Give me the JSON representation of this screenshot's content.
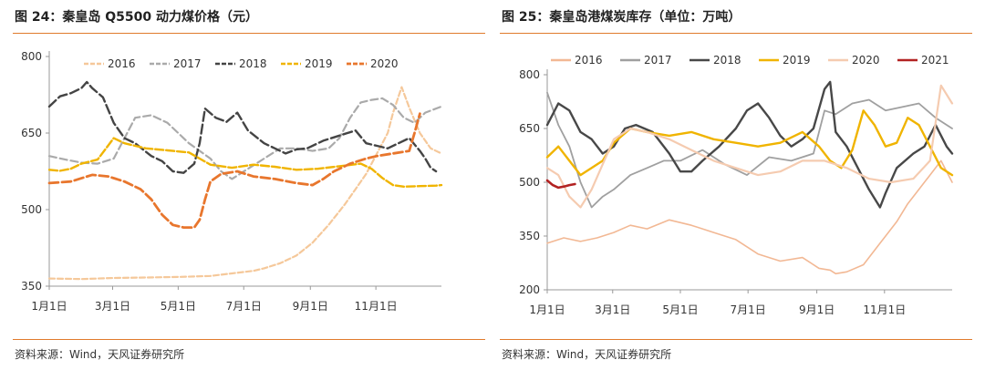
{
  "charts": [
    {
      "title": "图 24：秦皇岛 Q5500 动力煤价格（元）",
      "source": "资料来源：Wind，天风证券研究所"
    },
    {
      "title": "图 25：秦皇岛港煤炭库存（单位：万吨）",
      "source": "资料来源：Wind，天风证券研究所"
    }
  ],
  "chart_data": [
    {
      "type": "line",
      "title": "图 24：秦皇岛 Q5500 动力煤价格（元）",
      "xlabel": "",
      "ylabel": "",
      "x_domain": [
        0,
        365
      ],
      "ylim": [
        350,
        800
      ],
      "y_ticks": [
        350,
        500,
        650,
        800
      ],
      "x_ticks": [
        {
          "label": "1月1日",
          "day": 0
        },
        {
          "label": "3月1日",
          "day": 59
        },
        {
          "label": "5月1日",
          "day": 120
        },
        {
          "label": "7月1日",
          "day": 181
        },
        {
          "label": "9月1日",
          "day": 243
        },
        {
          "label": "11月1日",
          "day": 304
        }
      ],
      "grid": false,
      "legend": "top",
      "series": [
        {
          "name": "2016",
          "color": "#f5c89a",
          "dash": "6,3",
          "width": 2.2,
          "x": [
            0,
            30,
            60,
            90,
            120,
            150,
            170,
            190,
            200,
            215,
            230,
            245,
            260,
            275,
            285,
            295,
            305,
            315,
            320,
            328,
            335,
            345,
            355,
            365
          ],
          "y": [
            365,
            364,
            366,
            367,
            368,
            370,
            375,
            380,
            385,
            395,
            410,
            435,
            470,
            510,
            540,
            570,
            610,
            650,
            690,
            740,
            700,
            650,
            620,
            610
          ]
        },
        {
          "name": "2017",
          "color": "#aaaaaa",
          "dash": "8,4",
          "width": 2.2,
          "x": [
            0,
            15,
            30,
            45,
            60,
            70,
            80,
            95,
            110,
            130,
            150,
            160,
            170,
            185,
            200,
            215,
            230,
            245,
            260,
            270,
            280,
            290,
            300,
            310,
            320,
            330,
            340,
            350,
            365
          ],
          "y": [
            605,
            598,
            592,
            590,
            600,
            640,
            680,
            685,
            670,
            630,
            600,
            575,
            560,
            580,
            600,
            620,
            620,
            615,
            620,
            640,
            680,
            710,
            715,
            718,
            705,
            680,
            670,
            690,
            702
          ]
        },
        {
          "name": "2018",
          "color": "#444444",
          "dash": "10,4",
          "width": 2.4,
          "x": [
            0,
            10,
            20,
            30,
            35,
            40,
            50,
            60,
            70,
            80,
            95,
            105,
            115,
            125,
            135,
            140,
            145,
            155,
            165,
            175,
            185,
            200,
            210,
            220,
            230,
            240,
            255,
            270,
            285,
            295,
            305,
            315,
            325,
            335,
            345,
            350,
            355,
            360
          ],
          "y": [
            702,
            722,
            728,
            738,
            750,
            738,
            720,
            670,
            640,
            630,
            605,
            595,
            575,
            572,
            590,
            630,
            698,
            680,
            672,
            690,
            655,
            630,
            620,
            610,
            618,
            620,
            635,
            645,
            655,
            630,
            625,
            620,
            630,
            640,
            615,
            600,
            582,
            575
          ]
        },
        {
          "name": "2019",
          "color": "#f0b400",
          "dash": "9,3",
          "width": 2.4,
          "x": [
            0,
            10,
            20,
            30,
            45,
            60,
            70,
            80,
            90,
            110,
            130,
            140,
            150,
            170,
            190,
            210,
            230,
            250,
            270,
            290,
            300,
            310,
            320,
            330,
            345,
            360,
            365
          ],
          "y": [
            578,
            576,
            580,
            590,
            598,
            640,
            630,
            625,
            620,
            616,
            612,
            600,
            588,
            582,
            588,
            584,
            578,
            580,
            585,
            590,
            580,
            562,
            548,
            545,
            546,
            547,
            548
          ]
        },
        {
          "name": "2020",
          "color": "#e8762d",
          "dash": "10,4",
          "width": 2.8,
          "x": [
            0,
            20,
            40,
            55,
            70,
            85,
            95,
            105,
            115,
            125,
            135,
            140,
            145,
            150,
            160,
            175,
            190,
            210,
            230,
            245,
            255,
            265,
            280,
            295,
            305,
            320,
            335,
            340,
            345
          ],
          "y": [
            552,
            555,
            568,
            565,
            555,
            540,
            520,
            490,
            470,
            465,
            465,
            480,
            520,
            555,
            570,
            575,
            565,
            560,
            552,
            548,
            560,
            575,
            590,
            600,
            605,
            610,
            615,
            650,
            688
          ]
        }
      ]
    },
    {
      "type": "line",
      "title": "图 25：秦皇岛港煤炭库存（单位：万吨）",
      "xlabel": "",
      "ylabel": "",
      "x_domain": [
        0,
        365
      ],
      "ylim": [
        200,
        800
      ],
      "y_ticks": [
        200,
        350,
        500,
        650,
        800
      ],
      "x_ticks": [
        {
          "label": "1月1日",
          "day": 0
        },
        {
          "label": "3月1日",
          "day": 59
        },
        {
          "label": "5月1日",
          "day": 120
        },
        {
          "label": "7月1日",
          "day": 181
        },
        {
          "label": "9月1日",
          "day": 243
        },
        {
          "label": "11月1日",
          "day": 304
        }
      ],
      "grid": false,
      "legend": "top",
      "series": [
        {
          "name": "2016",
          "color": "#f2b894",
          "dash": "",
          "width": 1.6,
          "x": [
            0,
            15,
            30,
            45,
            60,
            75,
            90,
            110,
            130,
            150,
            170,
            190,
            210,
            230,
            245,
            255,
            260,
            270,
            285,
            300,
            315,
            325,
            335,
            345,
            355,
            365
          ],
          "y": [
            330,
            345,
            335,
            345,
            360,
            380,
            370,
            395,
            380,
            360,
            340,
            300,
            280,
            290,
            260,
            255,
            245,
            250,
            270,
            330,
            390,
            440,
            480,
            520,
            560,
            500
          ]
        },
        {
          "name": "2017",
          "color": "#a0a0a0",
          "dash": "",
          "width": 1.8,
          "x": [
            0,
            10,
            20,
            30,
            40,
            50,
            60,
            75,
            90,
            105,
            120,
            140,
            160,
            180,
            200,
            220,
            240,
            250,
            260,
            275,
            290,
            305,
            320,
            335,
            350,
            365
          ],
          "y": [
            750,
            660,
            600,
            500,
            430,
            460,
            480,
            520,
            540,
            560,
            560,
            590,
            550,
            520,
            570,
            560,
            580,
            700,
            690,
            720,
            730,
            700,
            710,
            720,
            680,
            650
          ]
        },
        {
          "name": "2018",
          "color": "#484848",
          "dash": "",
          "width": 2.4,
          "x": [
            0,
            10,
            20,
            30,
            40,
            50,
            60,
            70,
            80,
            95,
            110,
            120,
            130,
            140,
            155,
            170,
            180,
            190,
            200,
            210,
            220,
            230,
            240,
            250,
            255,
            260,
            270,
            280,
            290,
            300,
            305,
            315,
            330,
            340,
            350,
            360,
            365
          ],
          "y": [
            660,
            720,
            700,
            640,
            620,
            580,
            600,
            650,
            660,
            640,
            580,
            530,
            530,
            560,
            600,
            650,
            700,
            720,
            680,
            630,
            600,
            620,
            650,
            760,
            780,
            640,
            600,
            540,
            480,
            430,
            470,
            540,
            580,
            600,
            660,
            600,
            580
          ]
        },
        {
          "name": "2019",
          "color": "#f0b400",
          "dash": "",
          "width": 2.4,
          "x": [
            0,
            10,
            20,
            30,
            40,
            50,
            60,
            75,
            90,
            110,
            130,
            150,
            170,
            190,
            210,
            230,
            245,
            255,
            265,
            275,
            285,
            295,
            305,
            315,
            325,
            335,
            345,
            355,
            365
          ],
          "y": [
            570,
            600,
            560,
            520,
            540,
            560,
            610,
            650,
            640,
            630,
            640,
            620,
            610,
            600,
            610,
            640,
            600,
            560,
            540,
            590,
            700,
            660,
            600,
            610,
            680,
            660,
            600,
            540,
            520
          ]
        },
        {
          "name": "2020",
          "color": "#f5cbb0",
          "dash": "",
          "width": 2.2,
          "x": [
            0,
            10,
            20,
            30,
            40,
            50,
            60,
            75,
            90,
            110,
            130,
            150,
            170,
            190,
            210,
            230,
            250,
            270,
            290,
            310,
            330,
            345,
            355,
            365
          ],
          "y": [
            540,
            520,
            460,
            430,
            480,
            550,
            620,
            650,
            640,
            620,
            590,
            560,
            540,
            520,
            530,
            560,
            560,
            540,
            510,
            500,
            510,
            560,
            770,
            720
          ]
        },
        {
          "name": "2021",
          "color": "#b22222",
          "dash": "",
          "width": 2.6,
          "x": [
            0,
            5,
            10,
            15,
            20,
            25
          ],
          "y": [
            505,
            492,
            485,
            488,
            492,
            495
          ]
        }
      ]
    }
  ]
}
